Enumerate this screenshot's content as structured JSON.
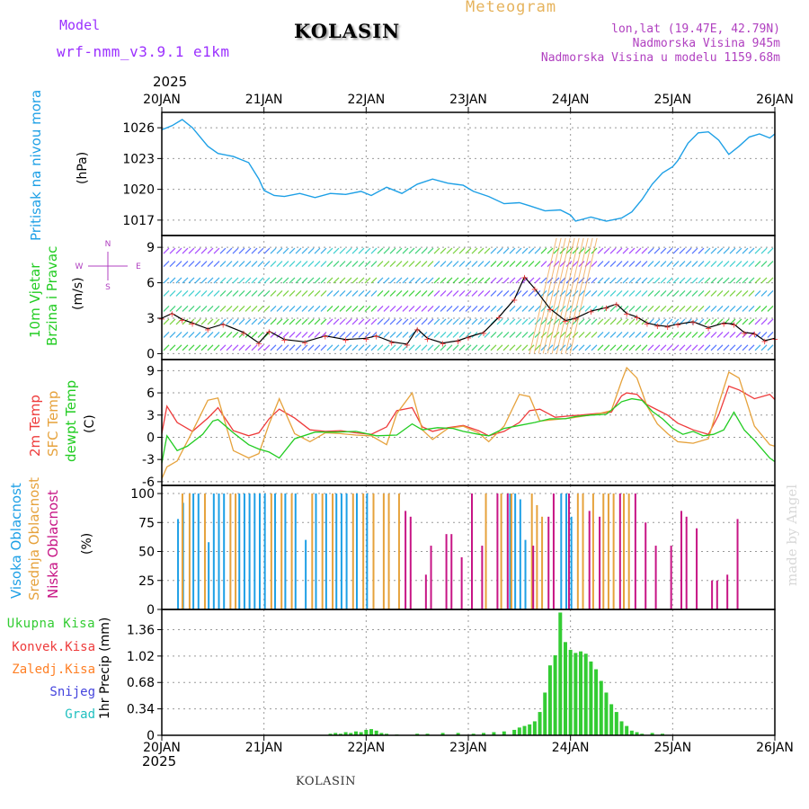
{
  "header": {
    "model_label": "Model",
    "model_name": "wrf-nmm_v3.9.1 e1km",
    "station": "KOLASIN",
    "product": "Meteogram",
    "lonlat": "lon,lat (19.47E, 42.79N)",
    "altitude": "Nadmorska Visina 945m",
    "model_altitude": "Nadmorska Visina u modelu 1159.68m",
    "year_top": "2025",
    "year_bottom": "2025",
    "footer_station": "KOLASIN",
    "credit": "made by Angel"
  },
  "colors": {
    "pressure": "#1ea0e6",
    "temp2m": "#ee3b3b",
    "sfc": "#e6a23c",
    "dewpt": "#22cc22",
    "cloud_high": "#1ea0e6",
    "cloud_mid": "#e6a23c",
    "cloud_low": "#c71585",
    "precip_total": "#33cc33",
    "precip_conv": "#ee3b3b",
    "precip_frz": "#ff7f24",
    "precip_snow": "#4444dd",
    "precip_hail": "#20c0c0",
    "wind_purple": "#9b30ff"
  },
  "chart_data": {
    "type": "line",
    "x_ticks": [
      "20JAN",
      "21JAN",
      "22JAN",
      "23JAN",
      "24JAN",
      "25JAN",
      "26JAN"
    ],
    "panels": {
      "pressure": {
        "ylabel": [
          "Pritisak na nivou mora",
          "(hPa)"
        ],
        "yticks": [
          "1026",
          "1023",
          "1020",
          "1017"
        ],
        "ylim": [
          1015.5,
          1027.5
        ],
        "series": [
          {
            "name": "Pritisak na nivou mora",
            "x": [
              0,
              0.1,
              0.2,
              0.3,
              0.45,
              0.55,
              0.7,
              0.85,
              0.95,
              1.0,
              1.1,
              1.2,
              1.35,
              1.5,
              1.65,
              1.8,
              1.95,
              2.05,
              2.2,
              2.35,
              2.5,
              2.65,
              2.8,
              2.95,
              3.05,
              3.2,
              3.35,
              3.5,
              3.6,
              3.75,
              3.9,
              4.0,
              4.05,
              4.2,
              4.35,
              4.5,
              4.6,
              4.7,
              4.8,
              4.9,
              5.0,
              5.05,
              5.15,
              5.25,
              5.35,
              5.45,
              5.55,
              5.65,
              5.75,
              5.85,
              5.95,
              6.0
            ],
            "y": [
              1025.8,
              1026.2,
              1026.8,
              1026.0,
              1024.2,
              1023.5,
              1023.2,
              1022.6,
              1021.0,
              1019.9,
              1019.4,
              1019.3,
              1019.6,
              1019.2,
              1019.6,
              1019.5,
              1019.8,
              1019.4,
              1020.2,
              1019.6,
              1020.5,
              1021.0,
              1020.6,
              1020.4,
              1019.8,
              1019.3,
              1018.6,
              1018.7,
              1018.4,
              1017.9,
              1018.0,
              1017.5,
              1016.9,
              1017.3,
              1016.9,
              1017.2,
              1017.8,
              1019.0,
              1020.5,
              1021.6,
              1022.2,
              1022.8,
              1024.5,
              1025.5,
              1025.6,
              1024.8,
              1023.4,
              1024.2,
              1025.1,
              1025.4,
              1025.0,
              1025.4
            ]
          }
        ]
      },
      "wind": {
        "ylabel": [
          "10m Vjetar",
          "Brzina i Pravac",
          "(m/s)"
        ],
        "yticks": [
          "9",
          "6",
          "3",
          "0"
        ],
        "ylim": [
          -0.5,
          10
        ],
        "compass": {
          "n": "N",
          "w": "W",
          "e": "E",
          "s": "S"
        },
        "series": [
          {
            "name": "10m Vjetar",
            "x": [
              0,
              0.1,
              0.2,
              0.3,
              0.45,
              0.6,
              0.8,
              0.95,
              1.05,
              1.2,
              1.4,
              1.6,
              1.8,
              2.0,
              2.1,
              2.25,
              2.4,
              2.5,
              2.6,
              2.75,
              2.9,
              3.0,
              3.15,
              3.3,
              3.45,
              3.55,
              3.65,
              3.8,
              3.95,
              4.05,
              4.2,
              4.35,
              4.45,
              4.55,
              4.65,
              4.75,
              4.85,
              4.95,
              5.05,
              5.2,
              5.35,
              5.5,
              5.6,
              5.7,
              5.8,
              5.9,
              6.0
            ],
            "y": [
              3.0,
              3.4,
              2.9,
              2.6,
              2.1,
              2.5,
              1.8,
              0.9,
              1.9,
              1.2,
              1.0,
              1.5,
              1.2,
              1.3,
              1.5,
              1.0,
              0.8,
              2.1,
              1.3,
              0.9,
              1.1,
              1.4,
              1.8,
              3.1,
              4.6,
              6.5,
              5.5,
              3.8,
              2.8,
              3.0,
              3.6,
              3.9,
              4.2,
              3.4,
              3.1,
              2.6,
              2.4,
              2.3,
              2.5,
              2.7,
              2.2,
              2.6,
              2.5,
              1.8,
              1.7,
              1.1,
              1.3
            ]
          }
        ]
      },
      "temperature": {
        "ylabel": [
          "2m Temp",
          "SFC Temp",
          "dewpt Temp",
          "(C)"
        ],
        "yticks": [
          "9",
          "6",
          "3",
          "0",
          "-3",
          "-6"
        ],
        "ylim": [
          -6.5,
          10.5
        ],
        "series": [
          {
            "name": "2m Temp",
            "x": [
              0,
              0.05,
              0.15,
              0.3,
              0.45,
              0.55,
              0.7,
              0.85,
              0.95,
              1.05,
              1.15,
              1.3,
              1.45,
              1.6,
              1.75,
              1.9,
              2.05,
              2.2,
              2.3,
              2.45,
              2.55,
              2.65,
              2.8,
              2.95,
              3.1,
              3.2,
              3.35,
              3.5,
              3.6,
              3.7,
              3.85,
              4.0,
              4.1,
              4.25,
              4.4,
              4.5,
              4.55,
              4.65,
              4.75,
              4.85,
              4.95,
              5.05,
              5.2,
              5.35,
              5.45,
              5.55,
              5.65,
              5.8,
              5.95,
              6.0
            ],
            "y": [
              0.5,
              4.2,
              2.0,
              0.8,
              2.6,
              4.0,
              0.9,
              0.2,
              0.6,
              2.5,
              3.8,
              2.6,
              1.0,
              0.8,
              0.9,
              0.6,
              0.4,
              1.4,
              3.6,
              4.0,
              1.4,
              0.8,
              1.3,
              1.6,
              0.9,
              0.2,
              0.8,
              2.0,
              3.6,
              3.8,
              2.7,
              2.9,
              3.0,
              3.2,
              3.4,
              5.6,
              6.0,
              5.8,
              4.4,
              3.7,
              3.0,
              1.9,
              1.0,
              0.4,
              3.0,
              6.9,
              6.4,
              5.2,
              5.8,
              5.1
            ]
          },
          {
            "name": "SFC Temp",
            "x": [
              0,
              0.05,
              0.15,
              0.3,
              0.45,
              0.55,
              0.7,
              0.85,
              0.95,
              1.05,
              1.15,
              1.3,
              1.45,
              1.6,
              1.75,
              1.9,
              2.05,
              2.2,
              2.3,
              2.45,
              2.55,
              2.65,
              2.8,
              2.95,
              3.1,
              3.2,
              3.35,
              3.5,
              3.6,
              3.7,
              3.85,
              4.0,
              4.1,
              4.25,
              4.4,
              4.5,
              4.55,
              4.65,
              4.75,
              4.85,
              4.95,
              5.05,
              5.2,
              5.35,
              5.45,
              5.55,
              5.65,
              5.8,
              5.95,
              6.0
            ],
            "y": [
              -5.6,
              -4.0,
              -3.2,
              0.8,
              5.0,
              5.3,
              -1.8,
              -2.8,
              -2.2,
              1.8,
              5.2,
              0.5,
              -0.6,
              0.6,
              0.5,
              0.3,
              0.2,
              -1.0,
              3.2,
              6.0,
              1.0,
              -0.3,
              1.2,
              1.5,
              0.6,
              -0.6,
              1.5,
              5.8,
              5.5,
              2.2,
              2.4,
              2.6,
              2.8,
              3.1,
              3.6,
              7.6,
              9.4,
              8.0,
              4.2,
              1.8,
              0.5,
              -0.6,
              -0.8,
              -0.2,
              4.5,
              8.8,
              8.0,
              1.5,
              -1.0,
              -1.2
            ]
          },
          {
            "name": "dewpt Temp",
            "x": [
              0,
              0.05,
              0.15,
              0.25,
              0.4,
              0.5,
              0.55,
              0.7,
              0.85,
              0.95,
              1.05,
              1.15,
              1.3,
              1.5,
              1.7,
              1.9,
              2.1,
              2.3,
              2.45,
              2.55,
              2.7,
              2.85,
              2.95,
              3.1,
              3.2,
              3.35,
              3.5,
              3.65,
              3.8,
              3.95,
              4.05,
              4.2,
              4.35,
              4.5,
              4.6,
              4.7,
              4.8,
              4.9,
              5.0,
              5.1,
              5.2,
              5.3,
              5.4,
              5.5,
              5.6,
              5.7,
              5.8,
              5.95,
              6.0
            ],
            "y": [
              -3.5,
              0.2,
              -1.8,
              -1.2,
              0.4,
              2.2,
              2.4,
              0.6,
              -1.0,
              -1.6,
              -2.0,
              -2.8,
              -0.2,
              0.7,
              0.7,
              0.8,
              0.2,
              0.3,
              1.8,
              1.0,
              1.3,
              1.2,
              0.8,
              0.4,
              0.2,
              1.2,
              1.6,
              2.0,
              2.5,
              2.5,
              2.8,
              3.0,
              3.1,
              4.8,
              5.2,
              5.0,
              3.5,
              2.5,
              1.2,
              0.4,
              0.8,
              0.2,
              0.4,
              1.0,
              3.4,
              1.0,
              -0.4,
              -2.8,
              -3.3
            ]
          }
        ]
      },
      "clouds": {
        "ylabel": [
          "Visoka Oblacnost",
          "Srednja Oblacnost",
          "Niska Oblacnost",
          "(%)"
        ],
        "yticks": [
          "100",
          "75",
          "50",
          "25",
          "0"
        ],
        "ylim": [
          0,
          107
        ],
        "series": [
          {
            "name": "Visoka Oblacnost",
            "x": [
              0.15,
              0.2,
              0.3,
              0.35,
              0.45,
              0.5,
              0.55,
              0.6,
              0.75,
              0.8,
              0.85,
              0.9,
              0.95,
              1.0,
              1.1,
              1.2,
              1.3,
              1.4,
              1.5,
              1.6,
              1.7,
              1.75,
              1.8,
              1.9,
              2.0,
              3.4,
              3.45,
              3.5,
              3.55,
              3.9,
              3.95,
              4.0
            ],
            "y": [
              78,
              92,
              100,
              100,
              58,
              100,
              100,
              100,
              100,
              100,
              100,
              100,
              100,
              100,
              100,
              100,
              100,
              60,
              100,
              100,
              100,
              100,
              100,
              100,
              100,
              100,
              100,
              95,
              60,
              100,
              100,
              80
            ]
          },
          {
            "name": "Srednja Oblacnost",
            "x": [
              0.18,
              0.25,
              0.4,
              0.65,
              0.7,
              1.05,
              1.15,
              1.25,
              1.45,
              1.55,
              1.65,
              1.85,
              1.95,
              2.05,
              2.15,
              2.2,
              2.3,
              3.15,
              3.3,
              3.4,
              3.6,
              3.65,
              3.7,
              4.05,
              4.1,
              4.2,
              4.3,
              4.35,
              4.4,
              4.5,
              4.55
            ],
            "y": [
              100,
              100,
              100,
              100,
              100,
              100,
              100,
              100,
              100,
              100,
              100,
              100,
              100,
              100,
              100,
              100,
              100,
              100,
              100,
              100,
              100,
              90,
              80,
              100,
              100,
              100,
              100,
              100,
              100,
              100,
              100
            ]
          },
          {
            "name": "Niska Oblacnost",
            "x": [
              2.35,
              2.4,
              2.55,
              2.6,
              2.75,
              2.8,
              2.9,
              3.0,
              3.1,
              3.25,
              3.35,
              3.6,
              3.75,
              3.8,
              3.95,
              4.15,
              4.25,
              4.45,
              4.6,
              4.7,
              4.8,
              4.95,
              5.05,
              5.1,
              5.2,
              5.35,
              5.4,
              5.5,
              5.6
            ],
            "y": [
              85,
              80,
              30,
              55,
              65,
              65,
              45,
              100,
              55,
              100,
              100,
              55,
              80,
              100,
              100,
              85,
              80,
              100,
              100,
              75,
              55,
              55,
              85,
              80,
              70,
              25,
              25,
              30,
              78
            ]
          }
        ]
      },
      "precip": {
        "ylabel": [
          "1hr Precip (mm)"
        ],
        "yticks": [
          "1.36",
          "1.02",
          "0.68",
          "0.34",
          "0"
        ],
        "ylim": [
          0,
          1.62
        ],
        "legend": [
          "Ukupna Kisa",
          "Konvek.Kisa",
          "Zaledj.Kisa",
          "Snijeg",
          "Grad"
        ],
        "series": [
          {
            "name": "Ukupna Kisa",
            "x": [
              1.65,
              1.7,
              1.75,
              1.8,
              1.85,
              1.9,
              1.95,
              2.0,
              2.05,
              2.1,
              2.15,
              2.2,
              2.3,
              2.5,
              2.6,
              2.75,
              2.9,
              3.05,
              3.15,
              3.25,
              3.35,
              3.45,
              3.5,
              3.55,
              3.6,
              3.65,
              3.7,
              3.75,
              3.8,
              3.85,
              3.9,
              3.95,
              4.0,
              4.05,
              4.1,
              4.15,
              4.2,
              4.25,
              4.3,
              4.35,
              4.4,
              4.45,
              4.5,
              4.55,
              4.6,
              4.65,
              4.7,
              4.8,
              4.9
            ],
            "y": [
              0.02,
              0.03,
              0.02,
              0.04,
              0.03,
              0.05,
              0.04,
              0.07,
              0.08,
              0.06,
              0.03,
              0.02,
              0.01,
              0.02,
              0.02,
              0.03,
              0.03,
              0.02,
              0.03,
              0.04,
              0.05,
              0.07,
              0.1,
              0.12,
              0.14,
              0.18,
              0.3,
              0.55,
              0.9,
              1.03,
              1.58,
              1.2,
              1.1,
              1.06,
              1.08,
              1.05,
              0.95,
              0.85,
              0.7,
              0.55,
              0.4,
              0.3,
              0.18,
              0.12,
              0.06,
              0.04,
              0.02,
              0.03,
              0.02
            ]
          }
        ]
      }
    }
  }
}
